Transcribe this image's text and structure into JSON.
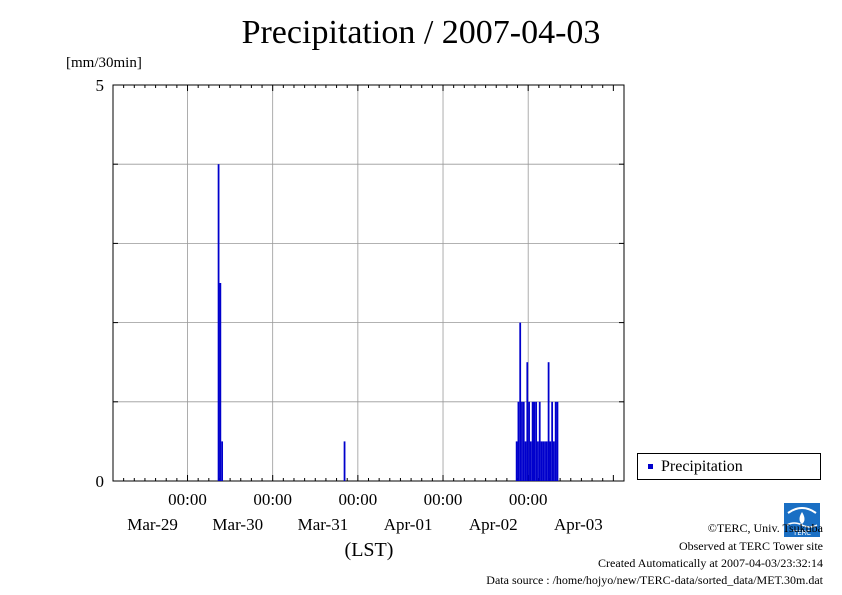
{
  "chart_data": {
    "type": "bar",
    "title": "Precipitation / 2007-04-03",
    "ylabel": "[mm/30min]",
    "xlabel": "(LST)",
    "ylim": [
      0,
      5
    ],
    "y_ticks": [
      "5",
      "0"
    ],
    "x_range_days": [
      "Mar-29 00:00",
      "Apr-04 00:00"
    ],
    "x_ticks": [
      {
        "time": "00:00",
        "date": "Mar-29"
      },
      {
        "time": "00:00",
        "date": "Mar-30"
      },
      {
        "time": "00:00",
        "date": "Mar-31"
      },
      {
        "time": "00:00",
        "date": "Apr-01"
      },
      {
        "time": "00:00",
        "date": "Apr-02"
      },
      {
        "time": "00:00",
        "date": "Apr-03"
      }
    ],
    "grid": true,
    "legend_position": "right",
    "series": [
      {
        "name": "Precipitation",
        "color": "#0000cc",
        "points": [
          {
            "t": "Mar-30 08:30",
            "v": 4.0
          },
          {
            "t": "Mar-30 09:00",
            "v": 2.5
          },
          {
            "t": "Mar-30 09:30",
            "v": 0.5
          },
          {
            "t": "Mar-31 20:00",
            "v": 0.5
          },
          {
            "t": "Apr-02 20:30",
            "v": 0.5
          },
          {
            "t": "Apr-02 21:00",
            "v": 1.0
          },
          {
            "t": "Apr-02 21:30",
            "v": 2.0
          },
          {
            "t": "Apr-02 22:00",
            "v": 1.0
          },
          {
            "t": "Apr-02 22:30",
            "v": 1.0
          },
          {
            "t": "Apr-02 23:00",
            "v": 0.5
          },
          {
            "t": "Apr-02 23:30",
            "v": 1.5
          },
          {
            "t": "Apr-03 00:00",
            "v": 1.0
          },
          {
            "t": "Apr-03 00:30",
            "v": 0.5
          },
          {
            "t": "Apr-03 01:00",
            "v": 1.0
          },
          {
            "t": "Apr-03 01:30",
            "v": 1.0
          },
          {
            "t": "Apr-03 02:00",
            "v": 1.0
          },
          {
            "t": "Apr-03 02:30",
            "v": 0.5
          },
          {
            "t": "Apr-03 03:00",
            "v": 1.0
          },
          {
            "t": "Apr-03 03:30",
            "v": 0.5
          },
          {
            "t": "Apr-03 04:00",
            "v": 0.5
          },
          {
            "t": "Apr-03 04:30",
            "v": 0.5
          },
          {
            "t": "Apr-03 05:00",
            "v": 0.5
          },
          {
            "t": "Apr-03 05:30",
            "v": 1.5
          },
          {
            "t": "Apr-03 06:00",
            "v": 0.5
          },
          {
            "t": "Apr-03 06:30",
            "v": 1.0
          },
          {
            "t": "Apr-03 07:00",
            "v": 0.5
          },
          {
            "t": "Apr-03 07:30",
            "v": 1.0
          },
          {
            "t": "Apr-03 08:00",
            "v": 1.0
          }
        ]
      }
    ]
  },
  "footer": {
    "copyright": "©TERC, Univ. Tsukuba",
    "observed": "Observed at TERC Tower site",
    "created": "Created Automatically at 2007-04-03/23:32:14",
    "source": "Data source : /home/hojyo/new/TERC-data/sorted_data/MET.30m.dat",
    "logo_text": "TERC"
  }
}
